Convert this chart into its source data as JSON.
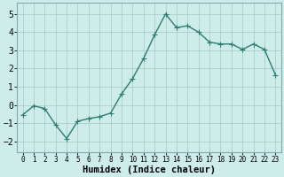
{
  "x": [
    0,
    1,
    2,
    3,
    4,
    5,
    6,
    7,
    8,
    9,
    10,
    11,
    12,
    13,
    14,
    15,
    16,
    17,
    18,
    19,
    20,
    21,
    22,
    23
  ],
  "y": [
    -0.55,
    -0.05,
    -0.2,
    -1.1,
    -1.85,
    -0.9,
    -0.75,
    -0.65,
    -0.45,
    0.6,
    1.45,
    2.55,
    3.85,
    5.0,
    4.25,
    4.35,
    4.0,
    3.45,
    3.35,
    3.35,
    3.05,
    3.35,
    3.05,
    1.65
  ],
  "line_color": "#2e7d6e",
  "marker": "D",
  "marker_size": 2.2,
  "bg_color": "#ceecea",
  "grid_color": "#aacfcd",
  "xlabel": "Humidex (Indice chaleur)",
  "xlabel_fontsize": 7.5,
  "ylabel_ticks": [
    -2,
    -1,
    0,
    1,
    2,
    3,
    4,
    5
  ],
  "xtick_labels": [
    "0",
    "1",
    "2",
    "3",
    "4",
    "5",
    "6",
    "7",
    "8",
    "9",
    "10",
    "11",
    "12",
    "13",
    "14",
    "15",
    "16",
    "17",
    "18",
    "19",
    "20",
    "21",
    "22",
    "23"
  ],
  "ylim": [
    -2.6,
    5.6
  ],
  "xlim": [
    -0.5,
    23.5
  ],
  "ytick_fontsize": 7,
  "xtick_fontsize": 5.5,
  "line_width": 1.0
}
